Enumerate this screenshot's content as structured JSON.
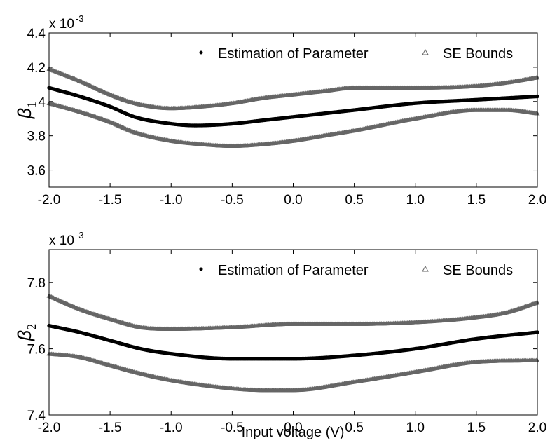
{
  "chart_data": [
    {
      "type": "scatter",
      "ylabel": "β",
      "ylabel_subscript": "1",
      "exponent_base": "x 10",
      "exponent_power": "-3",
      "xlim": [
        -2.0,
        2.0
      ],
      "ylim": [
        3.5,
        4.4
      ],
      "x_ticks": [
        "-2.0",
        "-1.5",
        "-1.0",
        "-0.5",
        "0.0",
        "0.5",
        "1.0",
        "1.5",
        "2.0"
      ],
      "y_ticks": [
        "3.6",
        "3.8",
        "4",
        "4.2",
        "4.4"
      ],
      "legend_position": "top-right",
      "legend": [
        "Estimation of Parameter",
        "SE Bounds"
      ],
      "series": [
        {
          "name": "Estimation of Parameter",
          "color": "#000000",
          "marker": "dot",
          "x": [
            -2.0,
            -1.75,
            -1.5,
            -1.3,
            -1.0,
            -0.8,
            -0.5,
            -0.25,
            0.0,
            0.5,
            1.0,
            1.5,
            2.0
          ],
          "y": [
            4.08,
            4.03,
            3.97,
            3.91,
            3.87,
            3.86,
            3.87,
            3.89,
            3.91,
            3.95,
            3.99,
            4.01,
            4.03
          ]
        },
        {
          "name": "SE Bounds",
          "color": "#666666",
          "marker": "triangle",
          "x": [
            -2.0,
            -1.75,
            -1.5,
            -1.3,
            -1.0,
            -0.75,
            -0.5,
            -0.25,
            0.0,
            0.25,
            0.5,
            1.0,
            1.5,
            1.75,
            2.0
          ],
          "y": [
            4.19,
            4.12,
            4.04,
            3.99,
            3.96,
            3.97,
            3.99,
            4.02,
            4.04,
            4.06,
            4.08,
            4.08,
            4.09,
            4.11,
            4.14
          ]
        },
        {
          "name": "SE Bounds",
          "color": "#666666",
          "marker": "triangle",
          "x": [
            -2.0,
            -1.75,
            -1.5,
            -1.3,
            -1.0,
            -0.75,
            -0.5,
            -0.25,
            0.0,
            0.25,
            0.5,
            1.0,
            1.5,
            1.75,
            2.0
          ],
          "y": [
            3.99,
            3.94,
            3.88,
            3.82,
            3.77,
            3.75,
            3.74,
            3.75,
            3.77,
            3.8,
            3.83,
            3.9,
            3.95,
            3.95,
            3.93
          ]
        }
      ]
    },
    {
      "type": "scatter",
      "ylabel": "β",
      "ylabel_subscript": "2",
      "exponent_base": "x 10",
      "exponent_power": "-3",
      "xlabel": "Input voltage (V)",
      "xlim": [
        -2.0,
        2.0
      ],
      "ylim": [
        7.4,
        7.9
      ],
      "x_ticks": [
        "-2.0",
        "-1.5",
        "-1.0",
        "-0.5",
        "0.0",
        "0.5",
        "1.0",
        "1.5",
        "2.0"
      ],
      "y_ticks": [
        "7.4",
        "7.6",
        "7.8"
      ],
      "legend_position": "top-right",
      "legend": [
        "Estimation of Parameter",
        "SE Bounds"
      ],
      "series": [
        {
          "name": "Estimation of Parameter",
          "color": "#000000",
          "marker": "dot",
          "x": [
            -2.0,
            -1.75,
            -1.5,
            -1.25,
            -1.0,
            -0.5,
            0.0,
            0.5,
            1.0,
            1.5,
            2.0
          ],
          "y": [
            7.67,
            7.65,
            7.625,
            7.6,
            7.585,
            7.57,
            7.57,
            7.58,
            7.6,
            7.63,
            7.65
          ]
        },
        {
          "name": "SE Bounds",
          "color": "#666666",
          "marker": "triangle",
          "x": [
            -2.0,
            -1.75,
            -1.5,
            -1.25,
            -1.0,
            -0.5,
            0.0,
            0.5,
            1.0,
            1.5,
            1.75,
            2.0
          ],
          "y": [
            7.76,
            7.72,
            7.69,
            7.665,
            7.66,
            7.665,
            7.675,
            7.675,
            7.68,
            7.695,
            7.71,
            7.74
          ]
        },
        {
          "name": "SE Bounds",
          "color": "#666666",
          "marker": "triangle",
          "x": [
            -2.0,
            -1.75,
            -1.5,
            -1.25,
            -1.0,
            -0.5,
            -0.25,
            0.0,
            0.5,
            1.0,
            1.5,
            2.0
          ],
          "y": [
            7.585,
            7.575,
            7.55,
            7.525,
            7.505,
            7.48,
            7.475,
            7.475,
            7.5,
            7.53,
            7.56,
            7.565
          ]
        }
      ]
    }
  ]
}
